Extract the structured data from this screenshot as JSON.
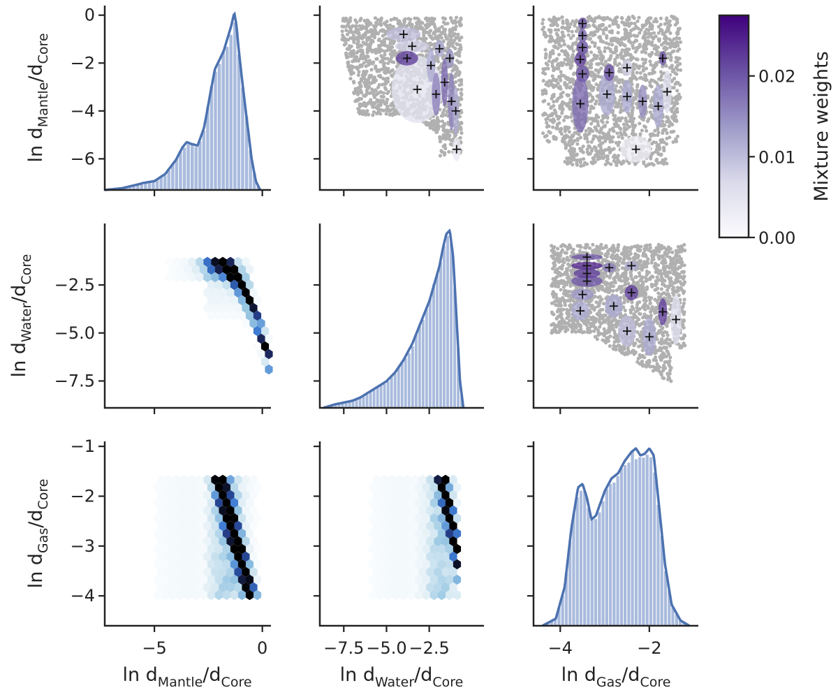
{
  "chart_data": {
    "type": "pairplot",
    "variables": [
      {
        "main": "ln d",
        "sub": "Mantle",
        "sep": "/d",
        "sub2": "Core"
      },
      {
        "main": "ln d",
        "sub": "Water",
        "sep": "/d",
        "sub2": "Core"
      },
      {
        "main": "ln d",
        "sub": "Gas",
        "sep": "/d",
        "sub2": "Core"
      }
    ],
    "ranges": [
      [
        -7.3,
        0.4
      ],
      [
        -8.9,
        0.7
      ],
      [
        -4.6,
        -0.9
      ]
    ],
    "ticks": [
      [
        {
          "v": -6,
          "t": "−6"
        },
        {
          "v": -4,
          "t": "−4"
        },
        {
          "v": -2,
          "t": "−2"
        },
        {
          "v": 0,
          "t": "0"
        }
      ],
      [
        {
          "v": -7.5,
          "t": "−7.5"
        },
        {
          "v": -5.0,
          "t": "−5.0"
        },
        {
          "v": -2.5,
          "t": "−2.5"
        }
      ],
      [
        {
          "v": -4,
          "t": "−4"
        },
        {
          "v": -3,
          "t": "−3"
        },
        {
          "v": -2,
          "t": "−2"
        },
        {
          "v": -1,
          "t": "−1"
        }
      ]
    ],
    "xticks_mantle": [
      {
        "v": -5,
        "t": "−5"
      },
      {
        "v": 0,
        "t": "0"
      }
    ],
    "xticks_gas": [
      {
        "v": -4,
        "t": "−4"
      },
      {
        "v": -2,
        "t": "−2"
      }
    ],
    "diagonal": [
      {
        "variable": "Mantle",
        "type": "histogram+kde",
        "kde_x": [
          -7.3,
          -6.5,
          -5.8,
          -5.5,
          -5.0,
          -4.5,
          -4.0,
          -3.7,
          -3.5,
          -3.3,
          -3.0,
          -2.7,
          -2.4,
          -2.2,
          -2.0,
          -1.8,
          -1.6,
          -1.45,
          -1.3,
          -1.2,
          -1.1,
          -0.9,
          -0.7,
          -0.5,
          -0.3,
          -0.1
        ],
        "kde_y": [
          0.0,
          0.01,
          0.03,
          0.04,
          0.05,
          0.09,
          0.17,
          0.24,
          0.27,
          0.26,
          0.25,
          0.35,
          0.55,
          0.68,
          0.73,
          0.78,
          0.86,
          0.92,
          1.0,
          0.93,
          0.8,
          0.58,
          0.38,
          0.18,
          0.05,
          0.0
        ]
      },
      {
        "variable": "Water",
        "type": "histogram+kde",
        "kde_x": [
          -8.7,
          -8.0,
          -7.5,
          -7.0,
          -6.5,
          -6.0,
          -5.5,
          -5.0,
          -4.5,
          -4.0,
          -3.5,
          -3.0,
          -2.5,
          -2.2,
          -1.9,
          -1.7,
          -1.5,
          -1.3,
          -1.1,
          -0.9,
          -0.7,
          -0.5
        ],
        "kde_y": [
          0.0,
          0.02,
          0.03,
          0.04,
          0.06,
          0.09,
          0.12,
          0.15,
          0.2,
          0.27,
          0.36,
          0.48,
          0.6,
          0.7,
          0.8,
          0.9,
          0.98,
          1.0,
          0.85,
          0.5,
          0.15,
          0.0
        ]
      },
      {
        "variable": "Gas",
        "type": "histogram+kde",
        "kde_x": [
          -4.4,
          -4.1,
          -3.9,
          -3.75,
          -3.6,
          -3.5,
          -3.4,
          -3.3,
          -3.2,
          -3.0,
          -2.85,
          -2.7,
          -2.55,
          -2.4,
          -2.3,
          -2.2,
          -2.1,
          -2.0,
          -1.9,
          -1.8,
          -1.65,
          -1.5,
          -1.3,
          -1.1
        ],
        "kde_y": [
          0.0,
          0.04,
          0.22,
          0.55,
          0.78,
          0.8,
          0.72,
          0.6,
          0.62,
          0.76,
          0.83,
          0.86,
          0.93,
          0.98,
          1.0,
          0.96,
          0.97,
          1.0,
          0.96,
          0.72,
          0.35,
          0.12,
          0.03,
          0.0
        ]
      }
    ],
    "hexbin_panels": [
      "water_vs_mantle",
      "gas_vs_mantle",
      "gas_vs_water"
    ],
    "gmm_panels": [
      "mantle_vs_water",
      "mantle_vs_gas",
      "water_vs_gas"
    ],
    "gmm_components": {
      "mantle_vs_water": [
        {
          "cx": -3.2,
          "cy": -3.1,
          "rx": 1.5,
          "ry": 1.4,
          "w": 0.005
        },
        {
          "cx": -4.0,
          "cy": -0.8,
          "rx": 1.0,
          "ry": 0.3,
          "w": 0.01
        },
        {
          "cx": -3.5,
          "cy": -1.3,
          "rx": 1.0,
          "ry": 0.25,
          "w": 0.008
        },
        {
          "cx": -3.8,
          "cy": -1.8,
          "rx": 0.65,
          "ry": 0.3,
          "w": 0.022
        },
        {
          "cx": -2.4,
          "cy": -2.1,
          "rx": 0.25,
          "ry": 0.7,
          "w": 0.012
        },
        {
          "cx": -2.1,
          "cy": -3.3,
          "rx": 0.25,
          "ry": 0.9,
          "w": 0.016
        },
        {
          "cx": -1.6,
          "cy": -2.8,
          "rx": 0.2,
          "ry": 1.0,
          "w": 0.018
        },
        {
          "cx": -1.2,
          "cy": -3.6,
          "rx": 0.2,
          "ry": 1.2,
          "w": 0.016
        },
        {
          "cx": -0.9,
          "cy": -5.6,
          "rx": 0.25,
          "ry": 0.5,
          "w": 0.004
        },
        {
          "cx": -0.95,
          "cy": -4.0,
          "rx": 0.18,
          "ry": 1.0,
          "w": 0.012
        },
        {
          "cx": -1.9,
          "cy": -1.4,
          "rx": 0.3,
          "ry": 0.35,
          "w": 0.012
        },
        {
          "cx": -1.3,
          "cy": -1.8,
          "rx": 0.25,
          "ry": 0.4,
          "w": 0.014
        }
      ],
      "mantle_vs_gas": [
        {
          "cx": -3.55,
          "cy": -3.7,
          "rx": 0.18,
          "ry": 1.2,
          "w": 0.018
        },
        {
          "cx": -3.5,
          "cy": -2.45,
          "rx": 0.15,
          "ry": 0.35,
          "w": 0.02
        },
        {
          "cx": -3.55,
          "cy": -1.85,
          "rx": 0.13,
          "ry": 0.3,
          "w": 0.022
        },
        {
          "cx": -3.5,
          "cy": -1.35,
          "rx": 0.13,
          "ry": 0.3,
          "w": 0.02
        },
        {
          "cx": -3.5,
          "cy": -0.85,
          "rx": 0.1,
          "ry": 0.28,
          "w": 0.018
        },
        {
          "cx": -3.5,
          "cy": -0.35,
          "rx": 0.1,
          "ry": 0.25,
          "w": 0.02
        },
        {
          "cx": -2.3,
          "cy": -5.6,
          "rx": 0.35,
          "ry": 0.55,
          "w": 0.003
        },
        {
          "cx": -2.95,
          "cy": -3.3,
          "rx": 0.18,
          "ry": 0.9,
          "w": 0.012
        },
        {
          "cx": -2.9,
          "cy": -2.4,
          "rx": 0.12,
          "ry": 0.35,
          "w": 0.02
        },
        {
          "cx": -2.5,
          "cy": -3.4,
          "rx": 0.12,
          "ry": 0.7,
          "w": 0.012
        },
        {
          "cx": -2.15,
          "cy": -3.6,
          "rx": 0.1,
          "ry": 0.7,
          "w": 0.015
        },
        {
          "cx": -1.8,
          "cy": -3.8,
          "rx": 0.12,
          "ry": 0.9,
          "w": 0.012
        },
        {
          "cx": -1.6,
          "cy": -3.2,
          "rx": 0.1,
          "ry": 0.9,
          "w": 0.006
        },
        {
          "cx": -1.7,
          "cy": -1.8,
          "rx": 0.08,
          "ry": 0.3,
          "w": 0.02
        },
        {
          "cx": -2.5,
          "cy": -2.2,
          "rx": 0.12,
          "ry": 0.35,
          "w": 0.008
        }
      ],
      "water_vs_gas": [
        {
          "cx": -3.55,
          "cy": -3.85,
          "rx": 0.2,
          "ry": 0.5,
          "w": 0.012
        },
        {
          "cx": -3.5,
          "cy": -3.0,
          "rx": 0.25,
          "ry": 0.3,
          "w": 0.014
        },
        {
          "cx": -3.4,
          "cy": -2.3,
          "rx": 0.35,
          "ry": 0.3,
          "w": 0.02
        },
        {
          "cx": -3.4,
          "cy": -1.9,
          "rx": 0.3,
          "ry": 0.25,
          "w": 0.022
        },
        {
          "cx": -3.4,
          "cy": -1.5,
          "rx": 0.35,
          "ry": 0.2,
          "w": 0.024
        },
        {
          "cx": -3.4,
          "cy": -1.05,
          "rx": 0.35,
          "ry": 0.15,
          "w": 0.02
        },
        {
          "cx": -2.8,
          "cy": -3.6,
          "rx": 0.2,
          "ry": 0.6,
          "w": 0.012
        },
        {
          "cx": -2.5,
          "cy": -4.9,
          "rx": 0.2,
          "ry": 0.8,
          "w": 0.01
        },
        {
          "cx": -2.4,
          "cy": -2.9,
          "rx": 0.15,
          "ry": 0.4,
          "w": 0.022
        },
        {
          "cx": -2.0,
          "cy": -5.2,
          "rx": 0.15,
          "ry": 1.0,
          "w": 0.012
        },
        {
          "cx": -1.7,
          "cy": -3.9,
          "rx": 0.1,
          "ry": 0.7,
          "w": 0.022
        },
        {
          "cx": -1.4,
          "cy": -4.3,
          "rx": 0.12,
          "ry": 1.3,
          "w": 0.006
        },
        {
          "cx": -2.9,
          "cy": -1.6,
          "rx": 0.15,
          "ry": 0.25,
          "w": 0.016
        },
        {
          "cx": -2.4,
          "cy": -1.5,
          "rx": 0.15,
          "ry": 0.25,
          "w": 0.012
        }
      ]
    },
    "colorbar": {
      "label": "Mixture weights",
      "min": 0.0,
      "max": 0.0275,
      "ticks": [
        {
          "v": 0.0,
          "t": "0.00"
        },
        {
          "v": 0.01,
          "t": "0.01"
        },
        {
          "v": 0.02,
          "t": "0.02"
        }
      ],
      "color_low": "#f5f4fa",
      "color_high": "#3f007d"
    },
    "colors": {
      "kde_line": "#4c72b0",
      "hist_fill": "#a9bbdd",
      "scatter_points": "#b0b0b0",
      "hexbin_high": "#000000",
      "hexbin_mid": "#2b6fcf"
    }
  }
}
